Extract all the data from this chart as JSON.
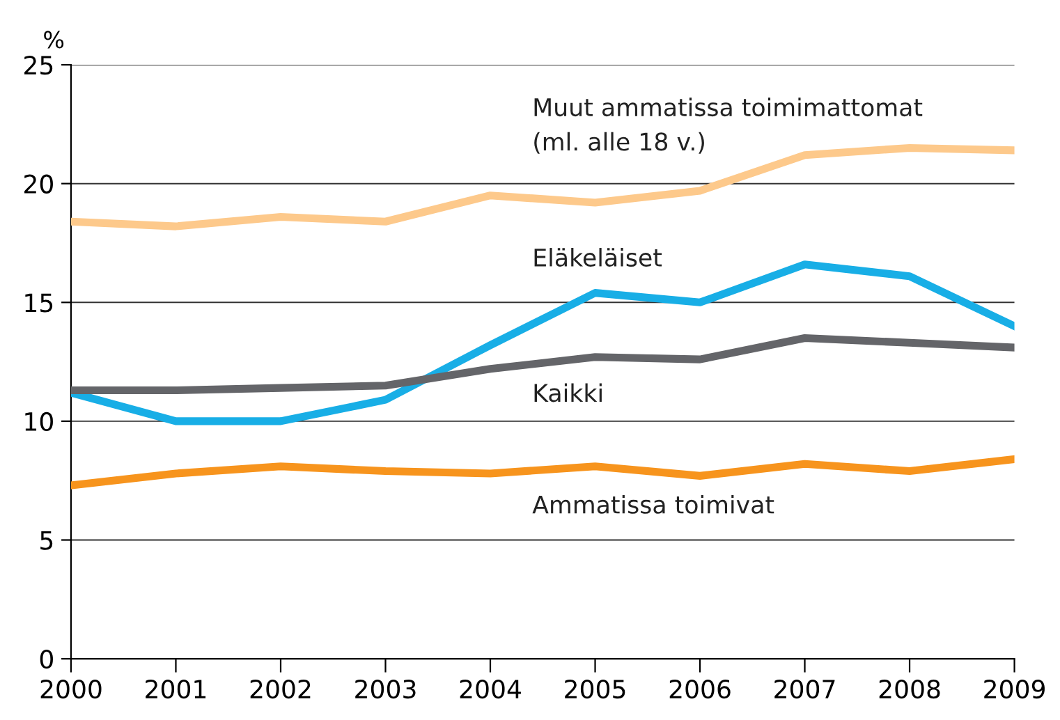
{
  "chart_data": {
    "type": "line",
    "ylabel": "%",
    "x": [
      2000,
      2001,
      2002,
      2003,
      2004,
      2005,
      2006,
      2007,
      2008,
      2009
    ],
    "series": [
      {
        "name": "Muut ammatissa toimimattomat\n(ml. alle 18 v.)",
        "color": "#fdc98b",
        "values": [
          18.4,
          18.2,
          18.6,
          18.4,
          19.5,
          19.2,
          19.7,
          21.2,
          21.5,
          21.4
        ]
      },
      {
        "name": "Eläkeläiset",
        "color": "#18aee6",
        "values": [
          11.2,
          10.0,
          10.0,
          10.9,
          13.2,
          15.4,
          15.0,
          16.6,
          16.1,
          14.0
        ]
      },
      {
        "name": "Kaikki",
        "color": "#646569",
        "values": [
          11.3,
          11.3,
          11.4,
          11.5,
          12.2,
          12.7,
          12.6,
          13.5,
          13.3,
          13.1
        ]
      },
      {
        "name": "Ammatissa toimivat",
        "color": "#f7941d",
        "values": [
          7.3,
          7.8,
          8.1,
          7.9,
          7.8,
          8.1,
          7.7,
          8.2,
          7.9,
          8.4
        ]
      }
    ],
    "xlim": [
      2000,
      2009
    ],
    "xticks": [
      2000,
      2001,
      2002,
      2003,
      2004,
      2005,
      2006,
      2007,
      2008,
      2009
    ],
    "ylim": [
      0,
      25
    ],
    "yticks": [
      0,
      5,
      10,
      15,
      20,
      25
    ],
    "grid": "y",
    "legend": false,
    "marker": "none",
    "line_style": "solid"
  }
}
